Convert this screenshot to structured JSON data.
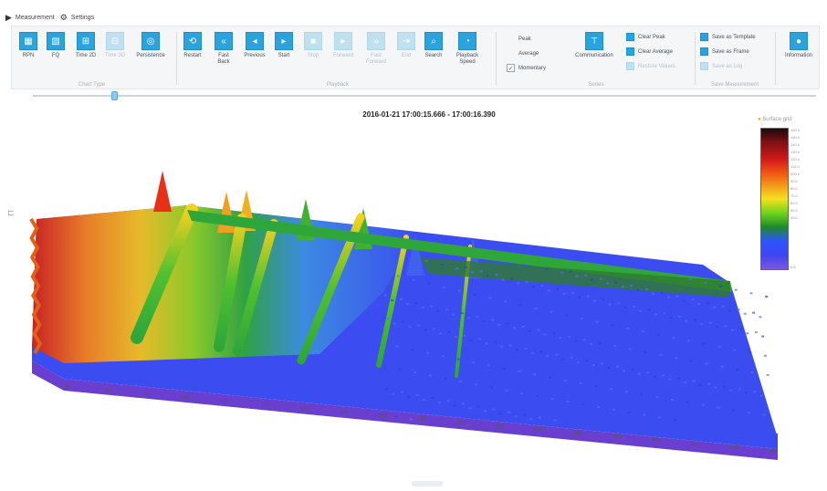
{
  "tabs": [
    {
      "label": "Measurement",
      "icon": "play-icon"
    },
    {
      "label": "Settings",
      "icon": "gear-icon"
    }
  ],
  "ribbon": {
    "chart_type": {
      "label": "Chart Type",
      "buttons": [
        {
          "label": "RPN",
          "enabled": true
        },
        {
          "label": "FQ",
          "enabled": true
        },
        {
          "label": "Time 2D",
          "enabled": true
        },
        {
          "label": "Time 3D",
          "enabled": false
        },
        {
          "label": "Persistence",
          "enabled": true
        }
      ]
    },
    "playback": {
      "label": "Playback",
      "buttons": [
        {
          "label": "Restart",
          "enabled": true
        },
        {
          "label": "Fast Back",
          "enabled": true
        },
        {
          "label": "Previous",
          "enabled": true
        },
        {
          "label": "Start",
          "enabled": true
        },
        {
          "label": "Stop",
          "enabled": false
        },
        {
          "label": "Forward",
          "enabled": false
        },
        {
          "label": "Fast Forward",
          "enabled": false
        },
        {
          "label": "End",
          "enabled": false
        },
        {
          "label": "Search",
          "enabled": true
        },
        {
          "label": "Playback Speed",
          "enabled": true
        }
      ]
    },
    "series": {
      "label": "Series",
      "checks": [
        {
          "label": "Peak",
          "checked": false
        },
        {
          "label": "Average",
          "checked": false
        },
        {
          "label": "Momentary",
          "checked": true
        }
      ],
      "communication_label": "Communication",
      "actions": [
        {
          "label": "Clear Peak",
          "enabled": true
        },
        {
          "label": "Clear Average",
          "enabled": true
        },
        {
          "label": "Restore Values",
          "enabled": false
        }
      ]
    },
    "save_measurement": {
      "label": "Save Measurement",
      "actions": [
        {
          "label": "Save as Template",
          "enabled": true
        },
        {
          "label": "Save as Frame",
          "enabled": true
        },
        {
          "label": "Save as Log",
          "enabled": false
        }
      ]
    },
    "information_label": "Information"
  },
  "plot": {
    "title": "2016-01-21 17:00:15.666 - 17:00:16.390",
    "legend_title": "Surface grid",
    "legend_ticks": [
      "160.0",
      "150.0",
      "140.0",
      "130.0",
      "120.0",
      "110.0",
      "100.0",
      "90.0",
      "80.0",
      "70.0",
      "60.0",
      "50.0",
      "40.0",
      "0.0"
    ],
    "x_ticks": [
      "0",
      "20",
      "40",
      "60",
      "80",
      "100",
      "120",
      "140",
      "160",
      "180",
      "200",
      "220",
      "240",
      "260",
      "280",
      "300",
      "320",
      "340",
      "360"
    ],
    "colors": {
      "accent": "#2aa3de",
      "surface_low": "#3b4cf0",
      "surface_mid": "#2fa63a",
      "surface_high": "#f0a020",
      "surface_peak": "#d0201a"
    }
  }
}
